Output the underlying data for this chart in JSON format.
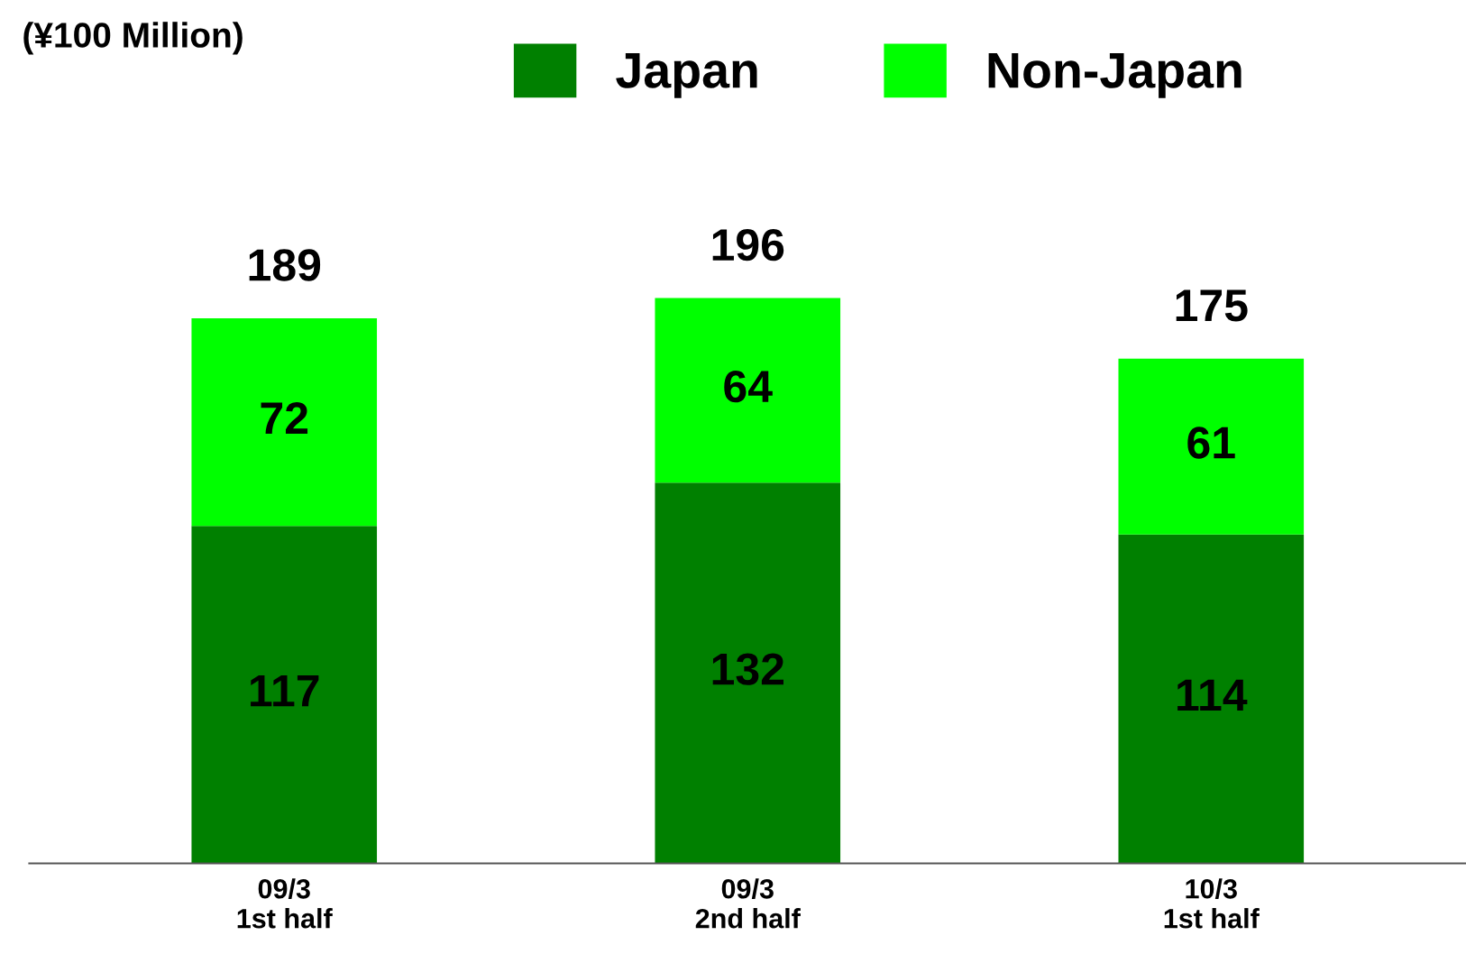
{
  "chart_data": {
    "type": "bar",
    "stacked": true,
    "annotations": [
      "(¥100 Million)"
    ],
    "categories": [
      "09/3\n1st half",
      "09/3\n2nd half",
      "10/3\n1st half"
    ],
    "series": [
      {
        "name": "Japan",
        "color": "#008000",
        "values": [
          117,
          132,
          114
        ]
      },
      {
        "name": "Non-Japan",
        "color": "#00ff00",
        "values": [
          72,
          64,
          61
        ]
      }
    ],
    "data_labels": true,
    "totals": [
      "189",
      "196",
      "175"
    ],
    "legend": "top",
    "grid": false
  }
}
